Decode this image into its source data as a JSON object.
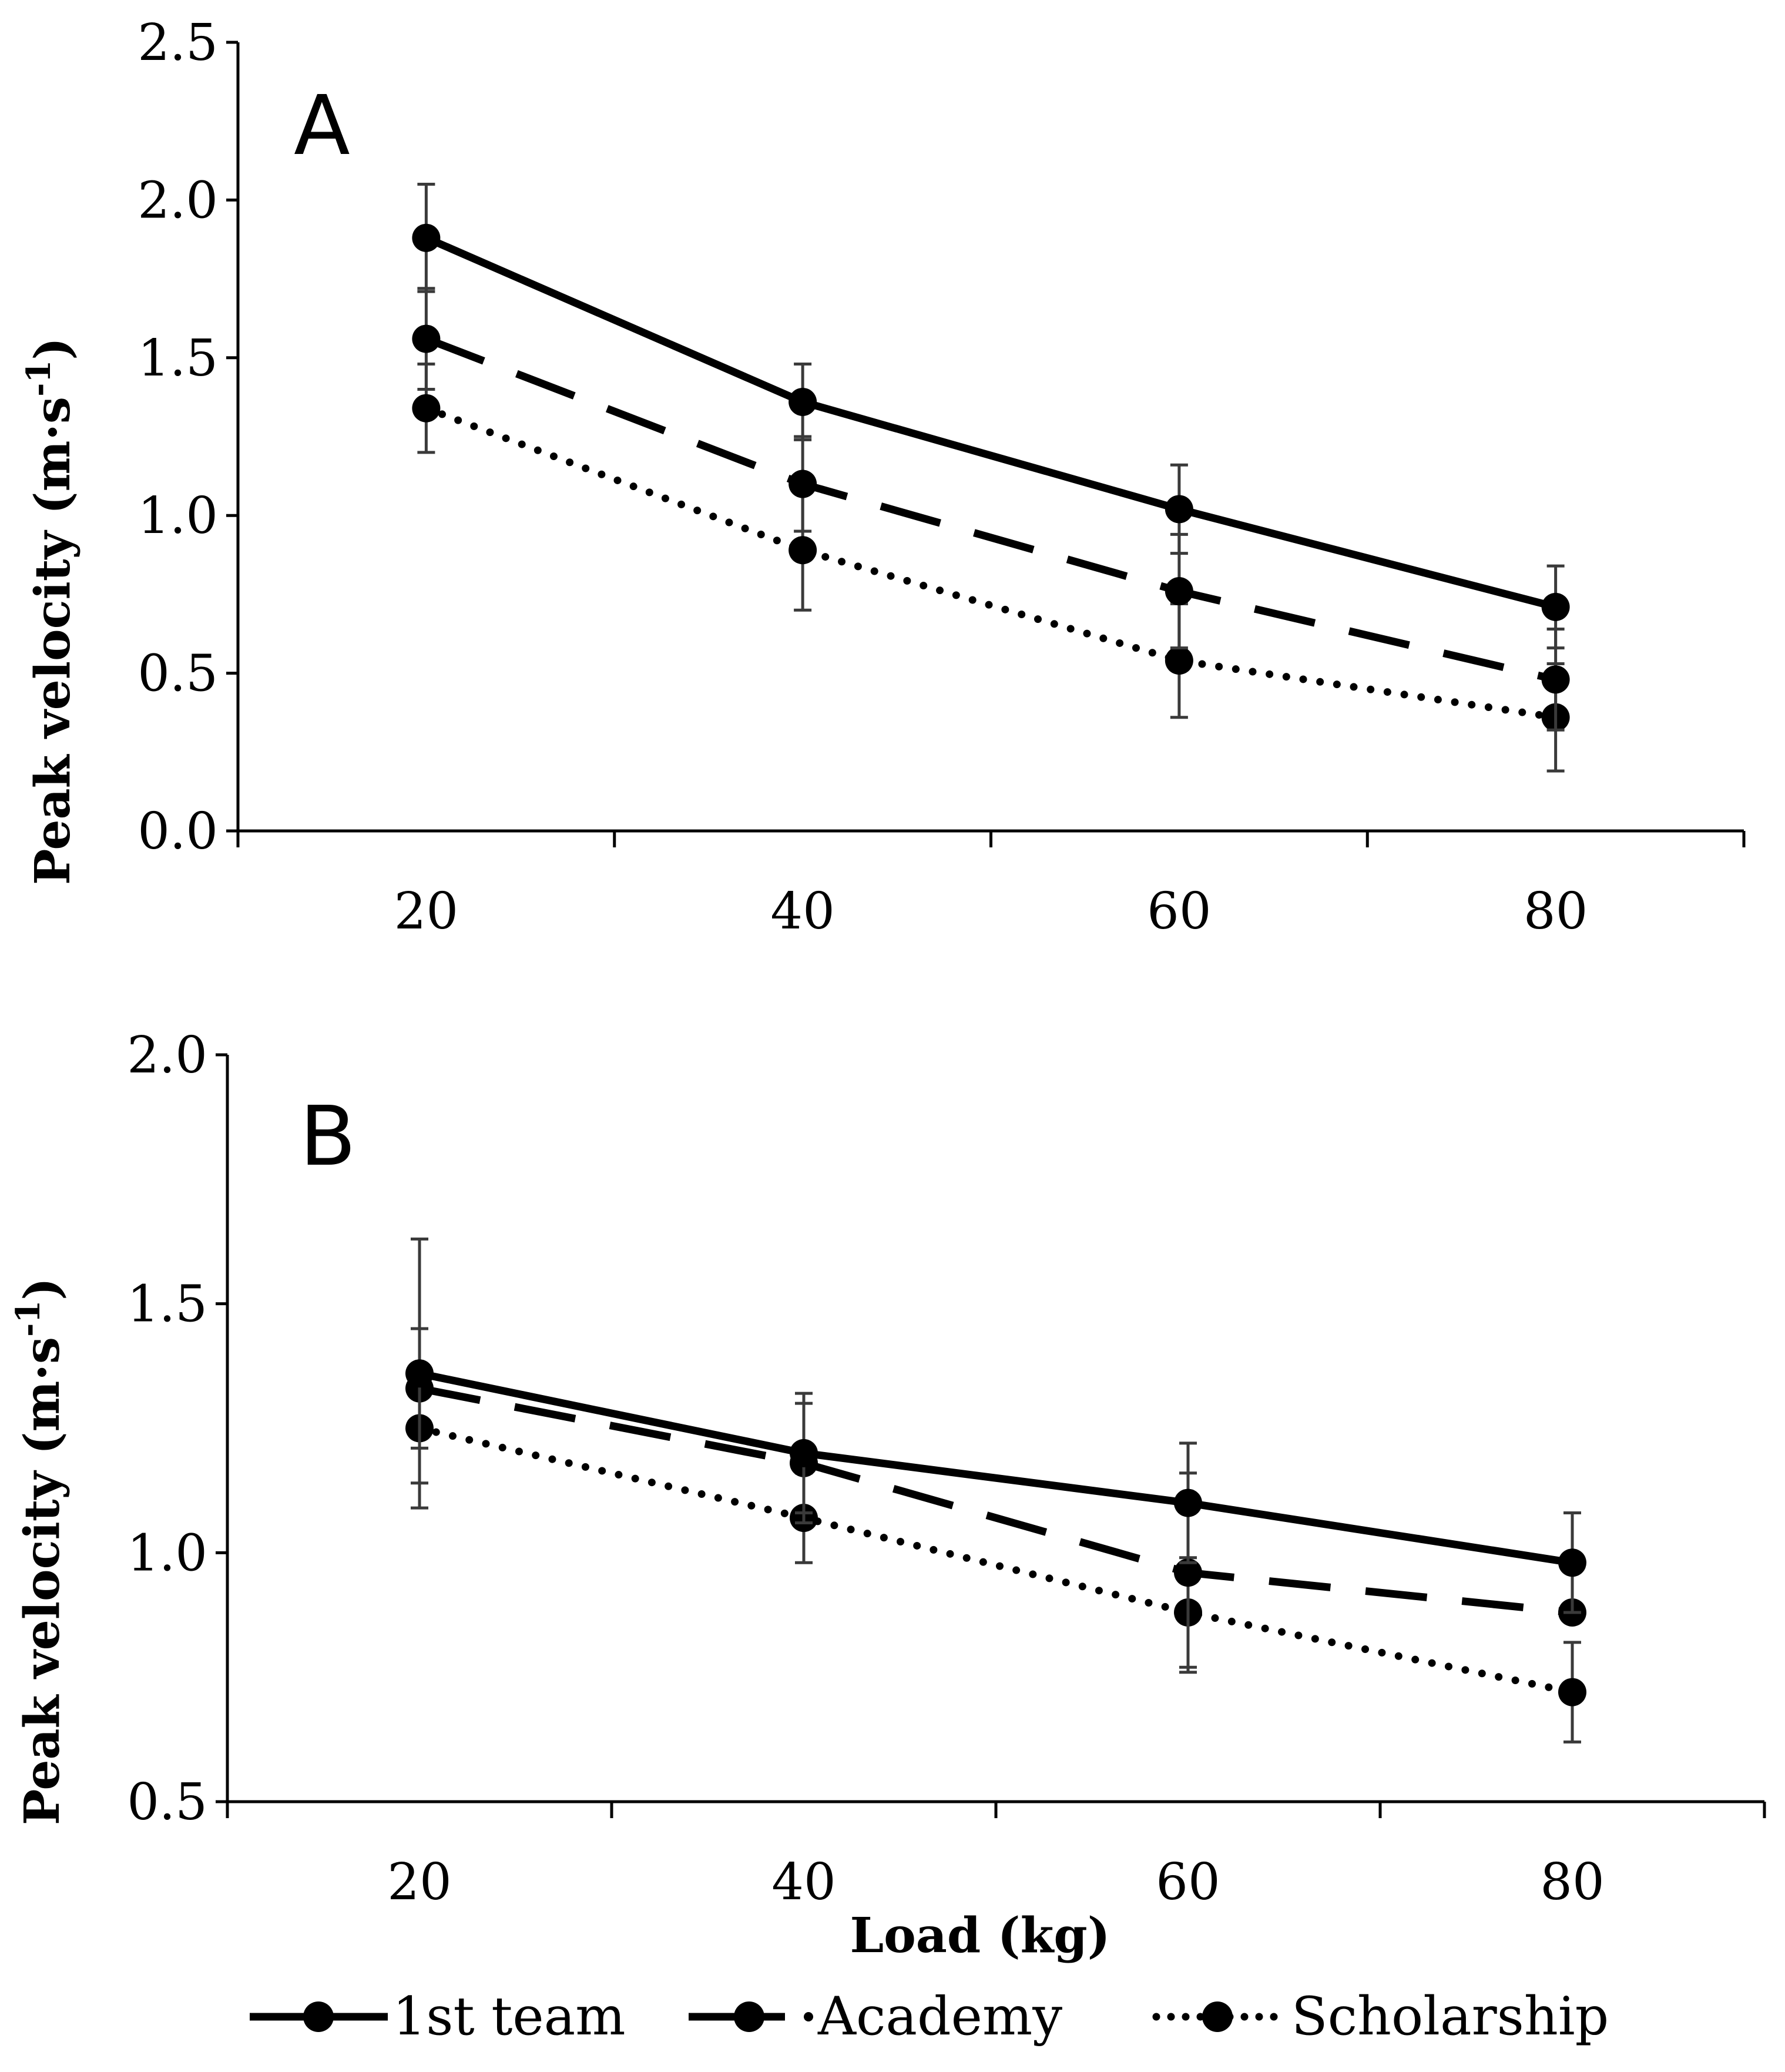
{
  "chart_data": [
    {
      "type": "line",
      "panel": "A",
      "x": [
        20,
        40,
        60,
        80
      ],
      "xticks": [
        20,
        40,
        60,
        80
      ],
      "xtick_labels": [
        "20",
        "40",
        "60",
        "80"
      ],
      "xlim": [
        10,
        90
      ],
      "ylim": [
        0.0,
        2.5
      ],
      "yticks": [
        0.0,
        0.5,
        1.0,
        1.5,
        2.0,
        2.5
      ],
      "ytick_labels": [
        "0.0",
        "0.5",
        "1.0",
        "1.5",
        "2.0",
        "2.5"
      ],
      "ylabel_main": "Peak velocity (m·s",
      "ylabel_sup": "-1",
      "ylabel_close": ")",
      "xlabel": "",
      "series": [
        {
          "name": "1st team",
          "style": "solid",
          "values": [
            1.88,
            1.36,
            1.02,
            0.71
          ],
          "error": [
            0.17,
            0.12,
            0.14,
            0.13
          ]
        },
        {
          "name": "Academy",
          "style": "dashed",
          "values": [
            1.56,
            1.1,
            0.76,
            0.48
          ],
          "error": [
            0.16,
            0.15,
            0.18,
            0.16
          ]
        },
        {
          "name": "Scholarship",
          "style": "dotted",
          "values": [
            1.34,
            0.89,
            0.54,
            0.36
          ],
          "error": [
            0.14,
            0.19,
            0.18,
            0.17
          ]
        }
      ]
    },
    {
      "type": "line",
      "panel": "B",
      "x": [
        20,
        40,
        60,
        80
      ],
      "xticks": [
        20,
        40,
        60,
        80
      ],
      "xtick_labels": [
        "20",
        "40",
        "60",
        "80"
      ],
      "xlim": [
        10,
        90
      ],
      "ylim": [
        0.5,
        2.0
      ],
      "yticks": [
        0.5,
        1.0,
        1.5,
        2.0
      ],
      "ytick_labels": [
        "0.5",
        "1.0",
        "1.5",
        "2.0"
      ],
      "ylabel_main": "Peak velocity (m·s",
      "ylabel_sup": "-1",
      "ylabel_close": ")",
      "xlabel": "Load (kg)",
      "series": [
        {
          "name": "1st team",
          "style": "solid",
          "values": [
            1.36,
            1.2,
            1.1,
            0.98
          ],
          "error": [
            0.27,
            0.12,
            0.12,
            0.1
          ]
        },
        {
          "name": "Academy",
          "style": "dashed",
          "values": [
            1.33,
            1.18,
            0.96,
            0.88
          ],
          "error": [
            0.12,
            0.12,
            0.2,
            0.0
          ]
        },
        {
          "name": "Scholarship",
          "style": "dotted",
          "values": [
            1.25,
            1.07,
            0.88,
            0.72
          ],
          "error": [
            0.11,
            0.09,
            0.11,
            0.1
          ]
        }
      ]
    }
  ],
  "legend": [
    {
      "label": "1st team",
      "style": "solid"
    },
    {
      "label": "Academy",
      "style": "dashed"
    },
    {
      "label": "Scholarship",
      "style": "dotted"
    }
  ],
  "colors": {
    "line": "#000000",
    "error_bar": "#3a3a3a",
    "background": "#ffffff"
  }
}
